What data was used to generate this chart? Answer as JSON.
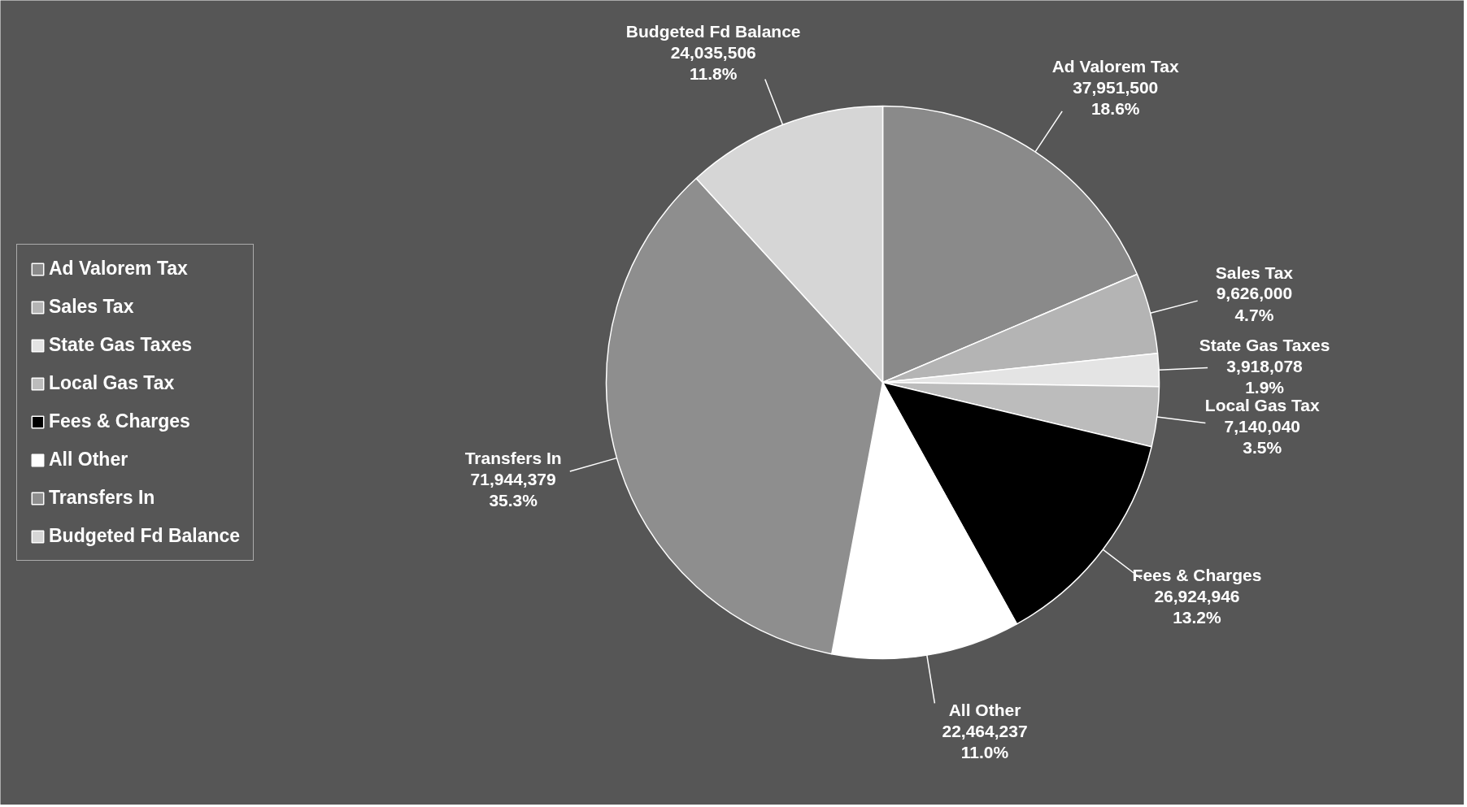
{
  "chart_data": {
    "type": "pie",
    "categories": [
      "Ad Valorem Tax",
      "Sales Tax",
      "State Gas Taxes",
      "Local Gas Tax",
      "Fees & Charges",
      "All Other",
      "Transfers In",
      "Budgeted Fd Balance"
    ],
    "values": [
      37951500,
      9626000,
      3918078,
      7140040,
      26924946,
      22464237,
      71944379,
      24035506
    ],
    "value_labels": [
      "37,951,500\n18.6%",
      "9,626,000\n4.7%",
      "3,918,078\n1.9%",
      "7,140,040\n3.5%",
      "26,924,946\n13.2%",
      "22,464,237\n11.0%",
      "71,944,379\n35.3%",
      "24,035,506\n11.8%"
    ],
    "colors": [
      "#8a8a8a",
      "#b4b4b4",
      "#e4e4e4",
      "#bcbcbc",
      "#000000",
      "#ffffff",
      "#8e8e8e",
      "#d6d6d6"
    ],
    "legend": "left"
  }
}
